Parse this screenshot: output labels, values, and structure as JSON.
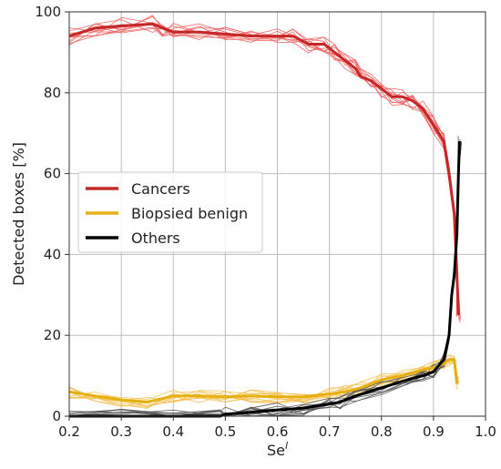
{
  "chart_data": {
    "type": "line",
    "xlabel": "Se",
    "xlabel_sup": "l",
    "ylabel": "Detected boxes [%]",
    "xlim": [
      0.2,
      1.0
    ],
    "ylim": [
      0,
      100
    ],
    "xticks": [
      0.2,
      0.3,
      0.4,
      0.5,
      0.6,
      0.7,
      0.8,
      0.9,
      1.0
    ],
    "xtick_labels": [
      "0.2",
      "0.3",
      "0.4",
      "0.5",
      "0.6",
      "0.7",
      "0.8",
      "0.9",
      "1.0"
    ],
    "yticks": [
      0,
      20,
      40,
      60,
      80,
      100
    ],
    "ytick_labels": [
      "0",
      "20",
      "40",
      "60",
      "80",
      "100"
    ],
    "grid": true,
    "legend": {
      "placement": "center-left",
      "entries": [
        "Cancers",
        "Biopsied benign",
        "Others"
      ]
    },
    "colors": {
      "cancers": "#c62828",
      "cancers_thin": "#f06060",
      "cancers_bold_start": "#8d6a1a",
      "benign": "#e6b012",
      "benign_thin": "#f4c050",
      "others": "#000000",
      "grid": "#bdbdbd"
    },
    "series": [
      {
        "name": "Cancers",
        "x": [
          0.2,
          0.25,
          0.3,
          0.36,
          0.38,
          0.4,
          0.45,
          0.5,
          0.55,
          0.6,
          0.63,
          0.66,
          0.69,
          0.71,
          0.73,
          0.75,
          0.76,
          0.78,
          0.8,
          0.82,
          0.84,
          0.86,
          0.88,
          0.9,
          0.92,
          0.93,
          0.94,
          0.945,
          0.948
        ],
        "y": [
          94,
          96,
          96.5,
          97,
          96,
          95,
          95,
          94.5,
          94,
          94,
          94,
          92,
          92,
          90,
          88,
          86,
          84,
          83,
          81,
          79,
          79,
          78,
          76,
          72,
          68,
          60,
          50,
          35,
          25
        ]
      },
      {
        "name": "Biopsied benign",
        "x": [
          0.2,
          0.25,
          0.3,
          0.35,
          0.4,
          0.45,
          0.5,
          0.55,
          0.6,
          0.65,
          0.7,
          0.73,
          0.76,
          0.8,
          0.84,
          0.88,
          0.9,
          0.92,
          0.93,
          0.94,
          0.945
        ],
        "y": [
          6,
          5,
          4,
          3.5,
          5,
          5,
          4.8,
          5,
          4.8,
          4.8,
          5.5,
          6,
          7,
          9,
          10,
          11.5,
          12,
          13,
          14,
          14,
          8
        ]
      },
      {
        "name": "Others",
        "x": [
          0.2,
          0.3,
          0.4,
          0.49,
          0.5,
          0.55,
          0.6,
          0.65,
          0.7,
          0.72,
          0.75,
          0.8,
          0.85,
          0.88,
          0.9,
          0.92,
          0.93,
          0.935,
          0.94,
          0.945,
          0.948,
          0.95
        ],
        "y": [
          0,
          0,
          0,
          0,
          0.5,
          1,
          1.5,
          2,
          3,
          3.5,
          5,
          7,
          9,
          10,
          11,
          14,
          20,
          30,
          35,
          45,
          60,
          68
        ]
      }
    ]
  }
}
